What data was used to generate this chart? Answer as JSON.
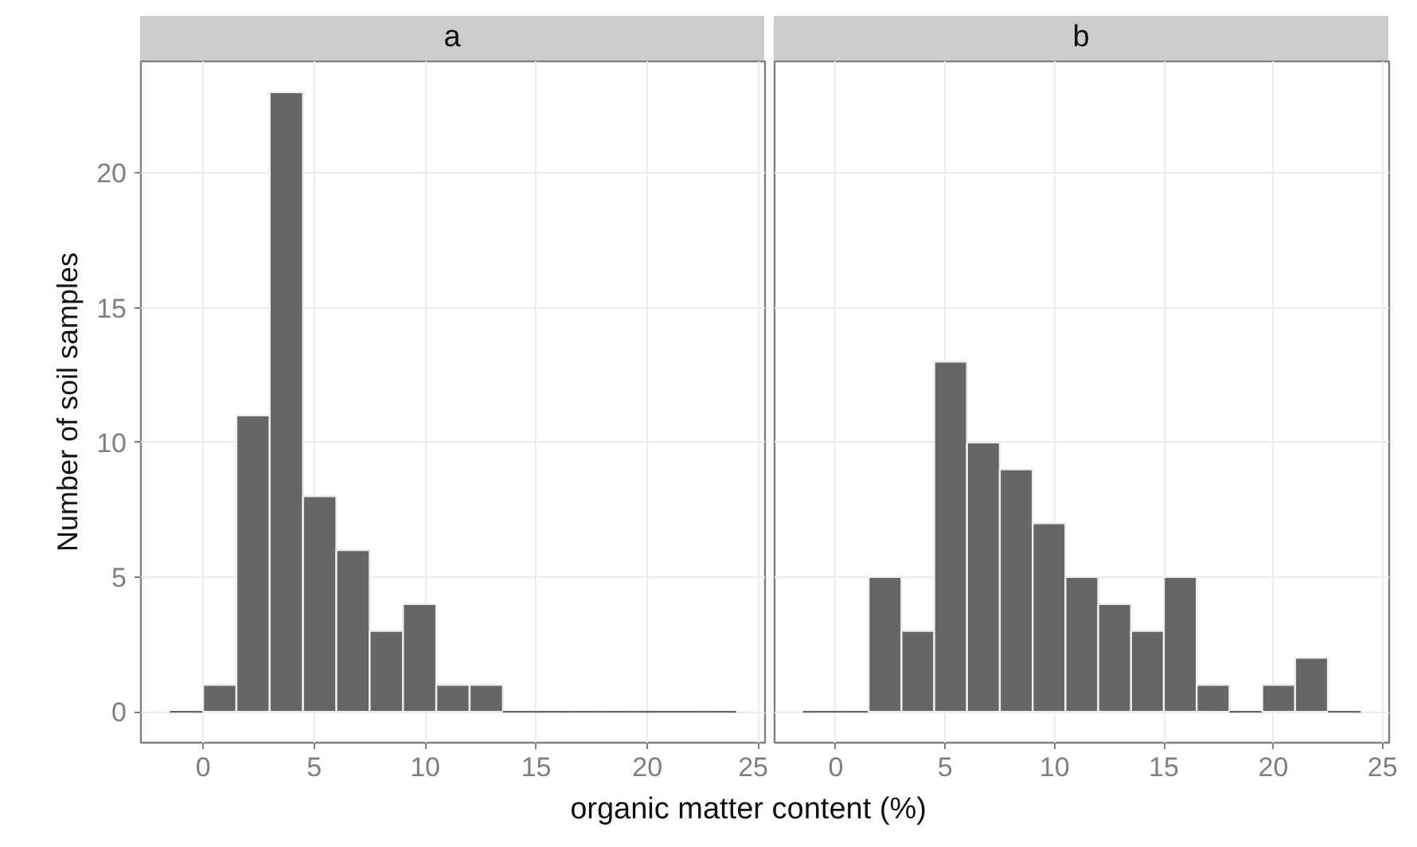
{
  "chart_data": [
    {
      "type": "histogram",
      "title": "a",
      "xlabel": "organic matter content (%)",
      "ylabel": "Number of soil samples",
      "color": "#666666",
      "bins": [
        -1.5,
        0,
        1.5,
        3,
        4.5,
        6,
        7.5,
        9,
        10.5,
        12,
        13.5,
        15,
        16.5,
        18,
        19.5,
        21,
        22.5,
        24
      ],
      "values": [
        0,
        1,
        11,
        23,
        8,
        6,
        3,
        4,
        1,
        1,
        0,
        0,
        0,
        0,
        0,
        0,
        0
      ],
      "xlim": [
        -2.8,
        25.3
      ],
      "xticks": [
        0,
        5,
        10,
        15,
        20,
        25
      ],
      "ylim": [
        -1.15,
        24.15
      ],
      "yticks": [
        0,
        5,
        10,
        15,
        20
      ],
      "grid": true
    },
    {
      "type": "histogram",
      "title": "b",
      "color": "#666666",
      "bins": [
        -1.5,
        0,
        1.5,
        3,
        4.5,
        6,
        7.5,
        9,
        10.5,
        12,
        13.5,
        15,
        16.5,
        18,
        19.5,
        21,
        22.5,
        24
      ],
      "values": [
        0,
        0,
        5,
        3,
        13,
        10,
        9,
        7,
        5,
        4,
        3,
        5,
        1,
        0,
        1,
        2,
        0
      ],
      "xlim": [
        -2.8,
        25.3
      ],
      "xticks": [
        0,
        5,
        10,
        15,
        20,
        25
      ],
      "ylim": [
        -1.15,
        24.15
      ],
      "yticks": [
        0,
        5,
        10,
        15,
        20
      ],
      "grid": true,
      "tick_labels": "x"
    }
  ]
}
